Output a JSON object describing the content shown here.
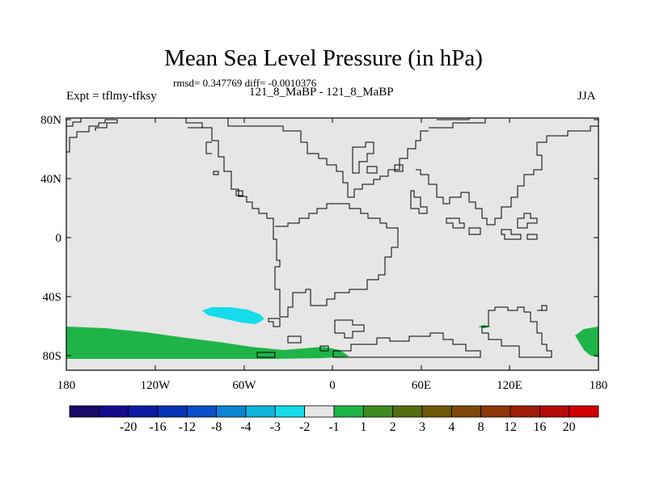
{
  "header": {
    "title": "Mean Sea Level Pressure (in hPa)",
    "stats": "rmsd= 0.347769 diff= -0.0010376",
    "left_label": "Expt = tflmy-tfksy",
    "center_label": "121_8_MaBP - 121_8_MaBP",
    "right_label": "JJA"
  },
  "axes": {
    "x_ticks": [
      "180",
      "120W",
      "60W",
      "0",
      "60E",
      "120E",
      "180"
    ],
    "y_ticks": [
      "80N",
      "40N",
      "0",
      "40S",
      "80S"
    ]
  },
  "colorbar": {
    "colors": [
      "#1b0a68",
      "#150a8c",
      "#0c1ca2",
      "#0a32b4",
      "#0a50c8",
      "#0a84d2",
      "#10b4dc",
      "#14dcea",
      "#e6e6e6",
      "#1fb447",
      "#3e8a22",
      "#556d10",
      "#6b5808",
      "#7d4808",
      "#8d360a",
      "#9f1e0a",
      "#b50a0a",
      "#d20000"
    ],
    "labels": [
      "-20",
      "-16",
      "-12",
      "-8",
      "-4",
      "-3",
      "-2",
      "-1",
      "1",
      "2",
      "3",
      "4",
      "8",
      "12",
      "16",
      "20"
    ]
  },
  "map": {
    "background_color": "#e6e6e6",
    "positive_color": "#1fb447",
    "negative_color": "#14dcea"
  }
}
